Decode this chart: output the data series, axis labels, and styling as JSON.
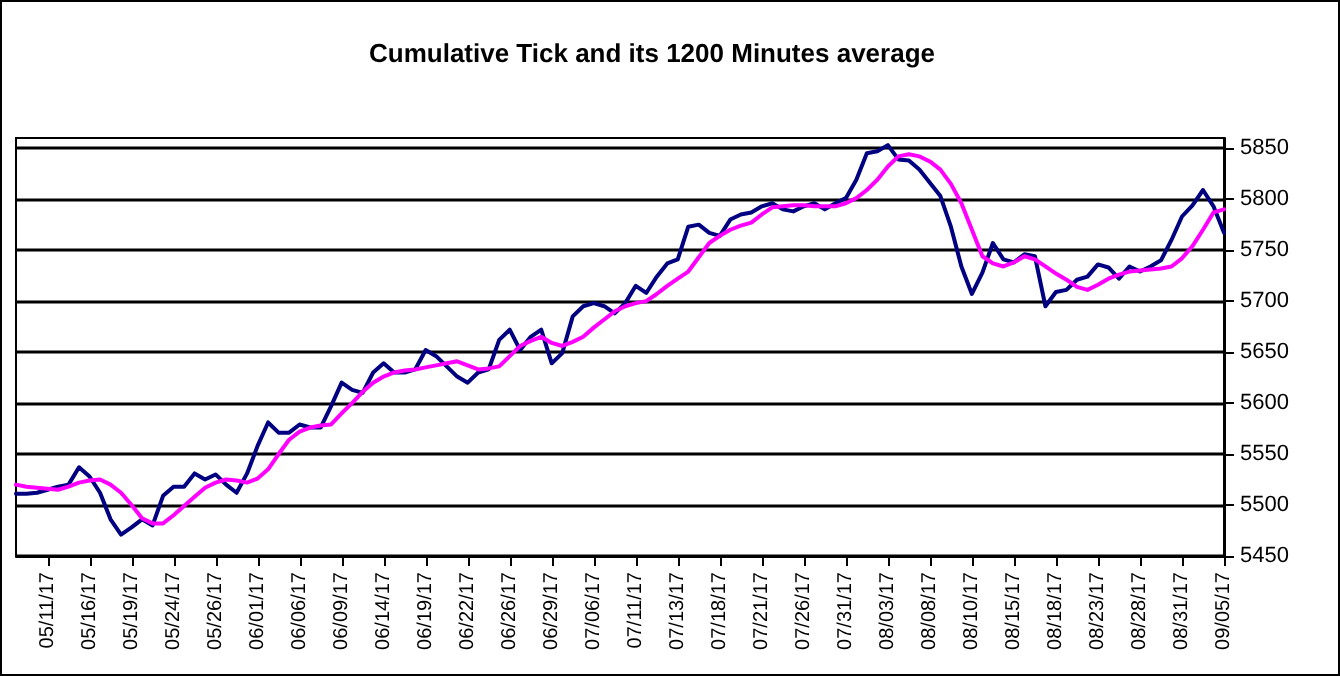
{
  "chart_data": {
    "type": "line",
    "title": "Cumulative Tick and its 1200 Minutes average",
    "categories": [
      null,
      null,
      null,
      "05/11/17",
      null,
      null,
      null,
      "05/16/17",
      null,
      null,
      null,
      "05/19/17",
      null,
      null,
      null,
      "05/24/17",
      null,
      null,
      null,
      "05/26/17",
      null,
      null,
      null,
      "06/01/17",
      null,
      null,
      null,
      "06/06/17",
      null,
      null,
      null,
      "06/09/17",
      null,
      null,
      null,
      "06/14/17",
      null,
      null,
      null,
      "06/19/17",
      null,
      null,
      null,
      "06/22/17",
      null,
      null,
      null,
      "06/26/17",
      null,
      null,
      null,
      "06/29/17",
      null,
      null,
      null,
      "07/06/17",
      null,
      null,
      null,
      "07/11/17",
      null,
      null,
      null,
      "07/13/17",
      null,
      null,
      null,
      "07/18/17",
      null,
      null,
      null,
      "07/21/17",
      null,
      null,
      null,
      "07/26/17",
      null,
      null,
      null,
      "07/31/17",
      null,
      null,
      null,
      "08/03/17",
      null,
      null,
      null,
      "08/08/17",
      null,
      null,
      null,
      "08/10/17",
      null,
      null,
      null,
      "08/15/17",
      null,
      null,
      null,
      "08/18/17",
      null,
      null,
      null,
      "08/23/17",
      null,
      null,
      null,
      "08/28/17",
      null,
      null,
      null,
      "08/31/17",
      null,
      null,
      null,
      "09/05/17"
    ],
    "series": [
      {
        "color": "#000080",
        "values": [
          5511,
          5511,
          5512,
          5515,
          5518,
          5520,
          5537,
          5528,
          5512,
          5486,
          5471,
          5478,
          5486,
          5480,
          5509,
          5518,
          5518,
          5531,
          5525,
          5530,
          5520,
          5512,
          5531,
          5558,
          5581,
          5571,
          5571,
          5579,
          5576,
          5576,
          5597,
          5620,
          5613,
          5610,
          5630,
          5639,
          5630,
          5630,
          5633,
          5652,
          5646,
          5636,
          5626,
          5620,
          5630,
          5633,
          5662,
          5672,
          5652,
          5665,
          5672,
          5639,
          5649,
          5685,
          5695,
          5698,
          5695,
          5688,
          5698,
          5715,
          5708,
          5724,
          5737,
          5741,
          5773,
          5775,
          5767,
          5764,
          5780,
          5785,
          5787,
          5793,
          5796,
          5790,
          5788,
          5793,
          5796,
          5790,
          5796,
          5801,
          5819,
          5845,
          5847,
          5853,
          5839,
          5838,
          5829,
          5816,
          5803,
          5773,
          5734,
          5707,
          5728,
          5757,
          5741,
          5738,
          5746,
          5744,
          5695,
          5709,
          5711,
          5721,
          5724,
          5736,
          5733,
          5722,
          5734,
          5729,
          5734,
          5740,
          5760,
          5783,
          5794,
          5809,
          5793,
          5767
        ]
      },
      {
        "color": "#ff00ff",
        "values": [
          5520,
          5518,
          5517,
          5516,
          5515,
          5518,
          5522,
          5524,
          5525,
          5520,
          5512,
          5500,
          5487,
          5482,
          5482,
          5490,
          5499,
          5508,
          5517,
          5522,
          5525,
          5524,
          5522,
          5526,
          5535,
          5550,
          5564,
          5572,
          5576,
          5578,
          5579,
          5590,
          5600,
          5611,
          5620,
          5626,
          5630,
          5632,
          5633,
          5635,
          5637,
          5639,
          5641,
          5637,
          5633,
          5634,
          5636,
          5646,
          5656,
          5661,
          5665,
          5659,
          5656,
          5660,
          5665,
          5674,
          5682,
          5690,
          5695,
          5698,
          5700,
          5707,
          5715,
          5722,
          5729,
          5743,
          5757,
          5764,
          5770,
          5774,
          5777,
          5785,
          5792,
          5793,
          5794,
          5794,
          5793,
          5793,
          5793,
          5796,
          5801,
          5809,
          5819,
          5832,
          5842,
          5844,
          5842,
          5837,
          5829,
          5815,
          5796,
          5770,
          5744,
          5737,
          5734,
          5738,
          5744,
          5741,
          5734,
          5727,
          5721,
          5714,
          5711,
          5716,
          5722,
          5726,
          5729,
          5730,
          5731,
          5732,
          5734,
          5742,
          5754,
          5770,
          5787,
          5790
        ]
      }
    ],
    "ylim": [
      5450,
      5860
    ],
    "yticks": [
      5450,
      5500,
      5550,
      5600,
      5650,
      5700,
      5750,
      5800,
      5850
    ],
    "grid": "y",
    "marker": "none",
    "line_style": "solid"
  }
}
